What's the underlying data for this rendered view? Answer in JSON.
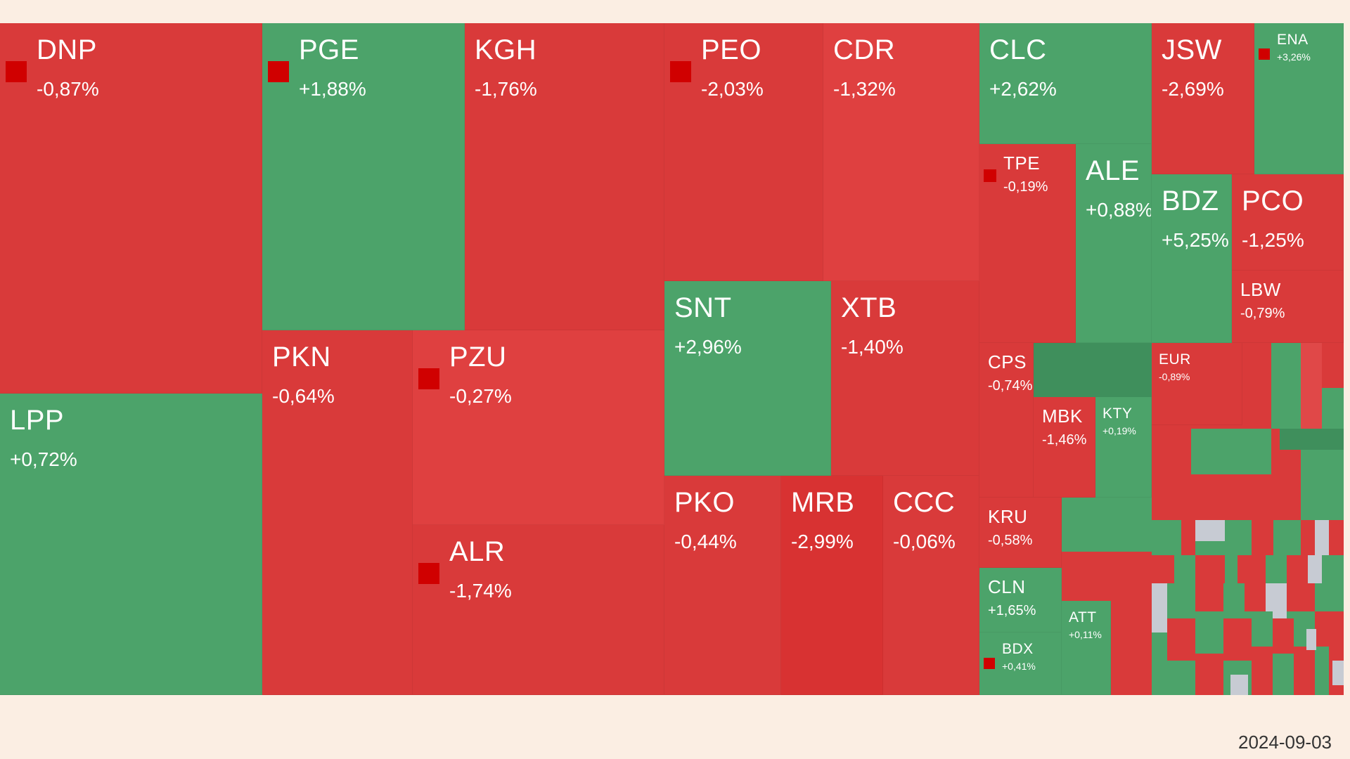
{
  "date": "2024-09-03",
  "colors": {
    "negative": "#d93a3a",
    "positive": "#4ca36a",
    "neutral": "#c7cbd3",
    "marker": "#d00000",
    "background": "#fbeee3"
  },
  "chart_data": {
    "type": "treemap",
    "items": [
      {
        "symbol": "DNP",
        "change": "-0,87%",
        "value": -0.87,
        "marker": true
      },
      {
        "symbol": "LPP",
        "change": "+0,72%",
        "value": 0.72,
        "marker": false
      },
      {
        "symbol": "PGE",
        "change": "+1,88%",
        "value": 1.88,
        "marker": true
      },
      {
        "symbol": "KGH",
        "change": "-1,76%",
        "value": -1.76,
        "marker": false
      },
      {
        "symbol": "PKN",
        "change": "-0,64%",
        "value": -0.64,
        "marker": false
      },
      {
        "symbol": "PZU",
        "change": "-0,27%",
        "value": -0.27,
        "marker": true
      },
      {
        "symbol": "ALR",
        "change": "-1,74%",
        "value": -1.74,
        "marker": true
      },
      {
        "symbol": "PEO",
        "change": "-2,03%",
        "value": -2.03,
        "marker": true
      },
      {
        "symbol": "CDR",
        "change": "-1,32%",
        "value": -1.32,
        "marker": false
      },
      {
        "symbol": "SNT",
        "change": "+2,96%",
        "value": 2.96,
        "marker": false
      },
      {
        "symbol": "XTB",
        "change": "-1,40%",
        "value": -1.4,
        "marker": false
      },
      {
        "symbol": "PKO",
        "change": "-0,44%",
        "value": -0.44,
        "marker": false
      },
      {
        "symbol": "MRB",
        "change": "-2,99%",
        "value": -2.99,
        "marker": false
      },
      {
        "symbol": "CCC",
        "change": "-0,06%",
        "value": -0.06,
        "marker": false
      },
      {
        "symbol": "CLC",
        "change": "+2,62%",
        "value": 2.62,
        "marker": false
      },
      {
        "symbol": "JSW",
        "change": "-2,69%",
        "value": -2.69,
        "marker": false
      },
      {
        "symbol": "ENA",
        "change": "+3,26%",
        "value": 3.26,
        "marker": true
      },
      {
        "symbol": "TPE",
        "change": "-0,19%",
        "value": -0.19,
        "marker": true
      },
      {
        "symbol": "ALE",
        "change": "+0,88%",
        "value": 0.88,
        "marker": false
      },
      {
        "symbol": "BDZ",
        "change": "+5,25%",
        "value": 5.25,
        "marker": false
      },
      {
        "symbol": "PCO",
        "change": "-1,25%",
        "value": -1.25,
        "marker": false
      },
      {
        "symbol": "LBW",
        "change": "-0,79%",
        "value": -0.79,
        "marker": false
      },
      {
        "symbol": "CPS",
        "change": "-0,74%",
        "value": -0.74,
        "marker": false
      },
      {
        "symbol": "EUR",
        "change": "-0,89%",
        "value": -0.89,
        "marker": false
      },
      {
        "symbol": "MBK",
        "change": "-1,46%",
        "value": -1.46,
        "marker": false
      },
      {
        "symbol": "KTY",
        "change": "+0,19%",
        "value": 0.19,
        "marker": false
      },
      {
        "symbol": "KRU",
        "change": "-0,58%",
        "value": -0.58,
        "marker": false
      },
      {
        "symbol": "CLN",
        "change": "+1,65%",
        "value": 1.65,
        "marker": false
      },
      {
        "symbol": "ATT",
        "change": "+0,11%",
        "value": 0.11,
        "marker": false
      },
      {
        "symbol": "BDX",
        "change": "+0,41%",
        "value": 0.41,
        "marker": true
      }
    ]
  }
}
